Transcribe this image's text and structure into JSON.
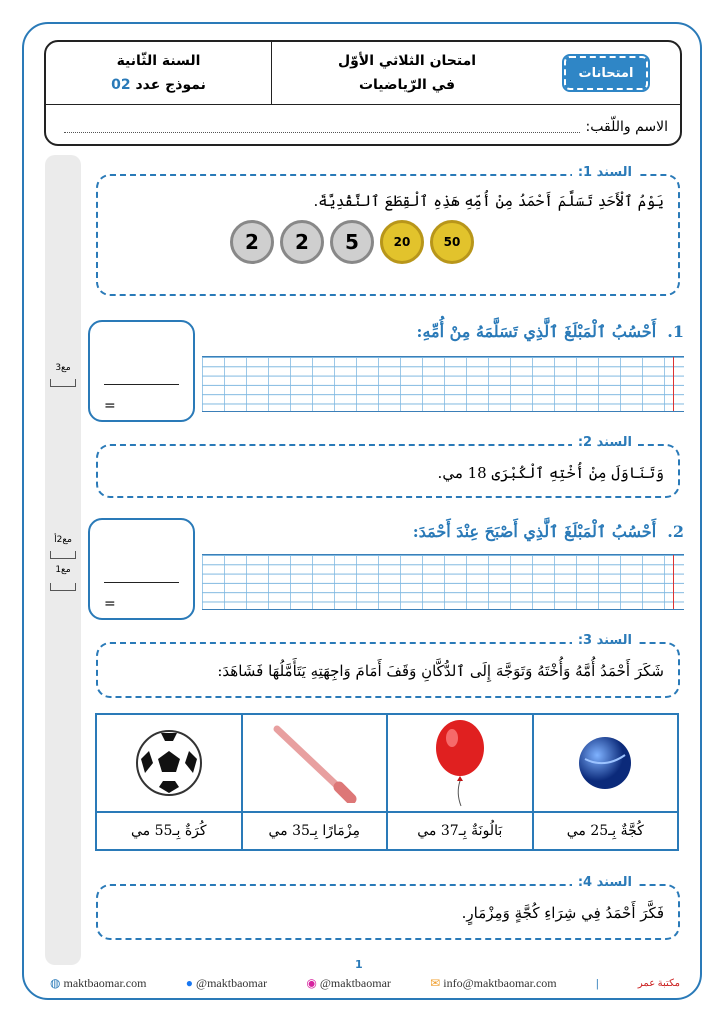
{
  "header": {
    "logo_text": "امتحانات",
    "title_line1": "امتحان الثلاثي الأوّل",
    "title_line2": "في الرّياضيات",
    "grade": "السنة الثّانية",
    "model_label": "نموذج عدد",
    "model_number": "02",
    "name_label": "الاسم واللّقب:"
  },
  "side_marks": [
    "مع3",
    "مع2أ",
    "مع1"
  ],
  "sanad1": {
    "label": "السند 1:",
    "text": "يَوْمُ ٱلْأَحَدِ تَسَلَّمَ أَحْمَدُ مِنْ أُمِّهِ هَذِهِ ٱلْقِطَعَ ٱلنَّقْدِيَّةَ.",
    "coins": [
      "50",
      "20",
      "5",
      "2",
      "2"
    ]
  },
  "question1": {
    "number": "1.",
    "text": "أَحْسُبُ ٱلْمَبْلَغَ ٱلَّذِي تَسَلَّمَهُ مِنْ أُمِّهِ:",
    "equals": "="
  },
  "sanad2": {
    "label": "السند 2:",
    "text": "وَتَنَاوَلَ مِنْ أُخْتِهِ ٱلْكُبْرَى 18 مي."
  },
  "question2": {
    "number": "2.",
    "text": "أَحْسُبُ ٱلْمَبْلَغَ ٱلَّذِي أَصْبَحَ عِنْدَ أَحْمَدَ:",
    "equals": "="
  },
  "sanad3": {
    "label": "السند 3:",
    "text": "شَكَرَ أَحْمَدُ أُمَّهُ وَأُخْتَهُ وَتَوَجَّهَ إِلَى ٱلدُّكَّانِ وَقَفَ أَمَامَ وَاجِهَتِهِ يَتَأَمَّلُهَا فَشَاهَدَ:"
  },
  "items": [
    {
      "caption": "كُجَّةٌ بِـ25 مي",
      "icon": "marble-icon"
    },
    {
      "caption": "بَالُونَةٌ بِـ37 مي",
      "icon": "balloon-icon"
    },
    {
      "caption": "مِزْمَارًا بِـ35 مي",
      "icon": "flute-icon"
    },
    {
      "caption": "كُرَةٌ بِـ55 مي",
      "icon": "football-icon"
    }
  ],
  "sanad4": {
    "label": "السند 4:",
    "text": "فَكَّرَ أَحْمَدُ فِي شِرَاءِ كُجَّةٍ وَمِزْمَارٍ."
  },
  "footer": {
    "page": "1",
    "website": "maktbaomar.com",
    "facebook": "@maktbaomar",
    "instagram": "@maktbaomar",
    "email": "info@maktbaomar.com",
    "brand": "مكتبة عمر"
  },
  "colors": {
    "accent": "#2a7ab8",
    "gold_coin": "#e2c32c",
    "silver_coin": "#c8c8c8"
  }
}
